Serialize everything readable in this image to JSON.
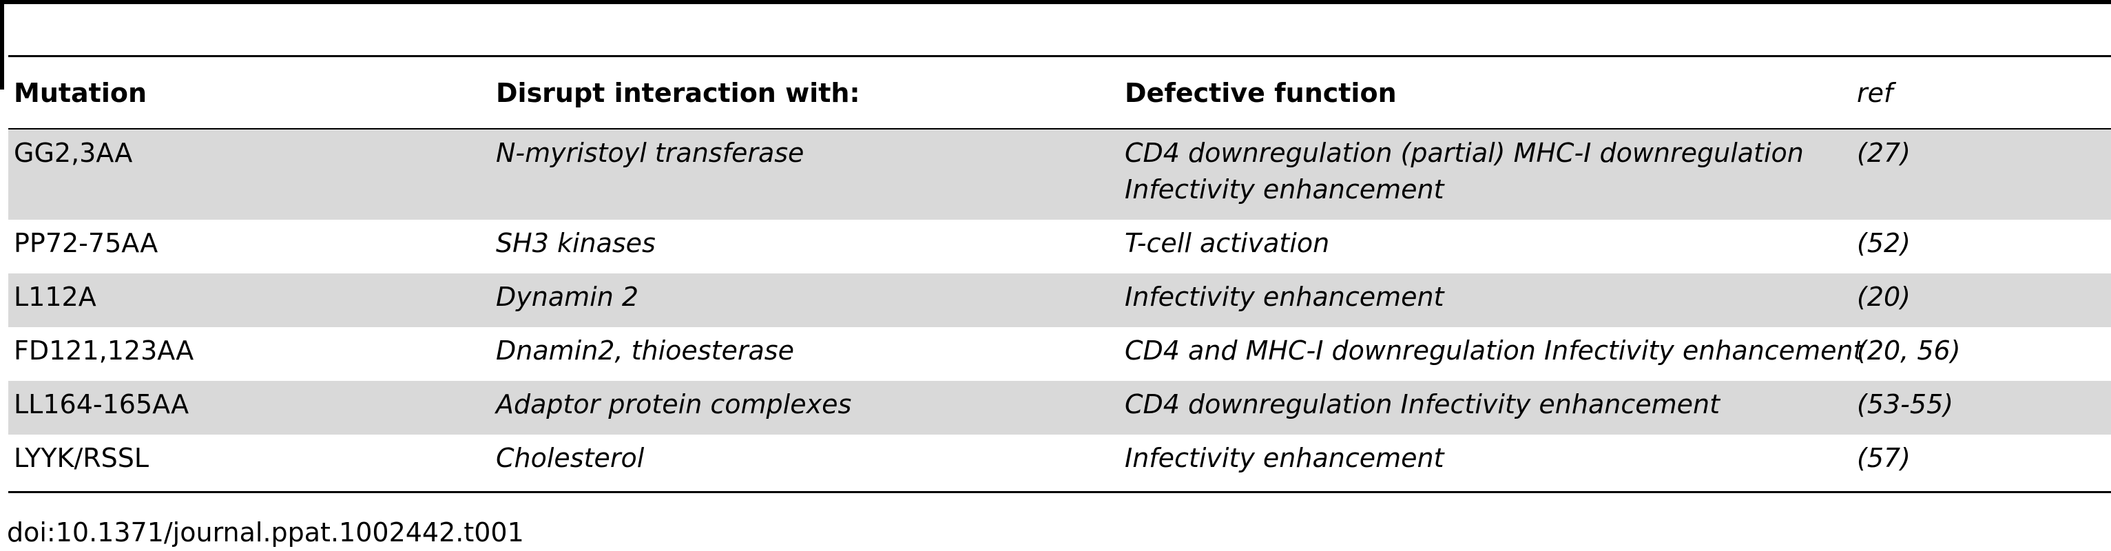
{
  "table": {
    "headers": {
      "mutation": "Mutation",
      "interaction": "Disrupt interaction with:",
      "function": "Defective function",
      "ref": "ref"
    },
    "rows": [
      {
        "mutation": "GG2,3AA",
        "interaction": "N-myristoyl transferase",
        "function_line1": "CD4 downregulation (partial) MHC-I downregulation",
        "function_line2": "Infectivity enhancement",
        "ref": "(27)",
        "shaded": true
      },
      {
        "mutation": "PP72-75AA",
        "interaction": "SH3 kinases",
        "function_line1": "T-cell activation",
        "ref": "(52)",
        "shaded": false
      },
      {
        "mutation": "L112A",
        "interaction": "Dynamin 2",
        "function_line1": "Infectivity enhancement",
        "ref": "(20)",
        "shaded": true
      },
      {
        "mutation": "FD121,123AA",
        "interaction": "Dnamin2, thioesterase",
        "function_line1": "CD4 and MHC-I downregulation Infectivity enhancement",
        "ref": "(20, 56)",
        "shaded": false
      },
      {
        "mutation": "LL164-165AA",
        "interaction": "Adaptor protein complexes",
        "function_line1": "CD4 downregulation Infectivity enhancement",
        "ref": "(53-55)",
        "shaded": true
      },
      {
        "mutation": "LYYK/RSSL",
        "interaction": "Cholesterol",
        "function_line1": "Infectivity enhancement",
        "ref": "(57)",
        "shaded": false
      }
    ]
  },
  "footer": {
    "doi": "doi:10.1371/journal.ppat.1002442.t001"
  },
  "colors": {
    "shaded_row": "#d9d9d9",
    "rule": "#000000",
    "text": "#000000"
  }
}
